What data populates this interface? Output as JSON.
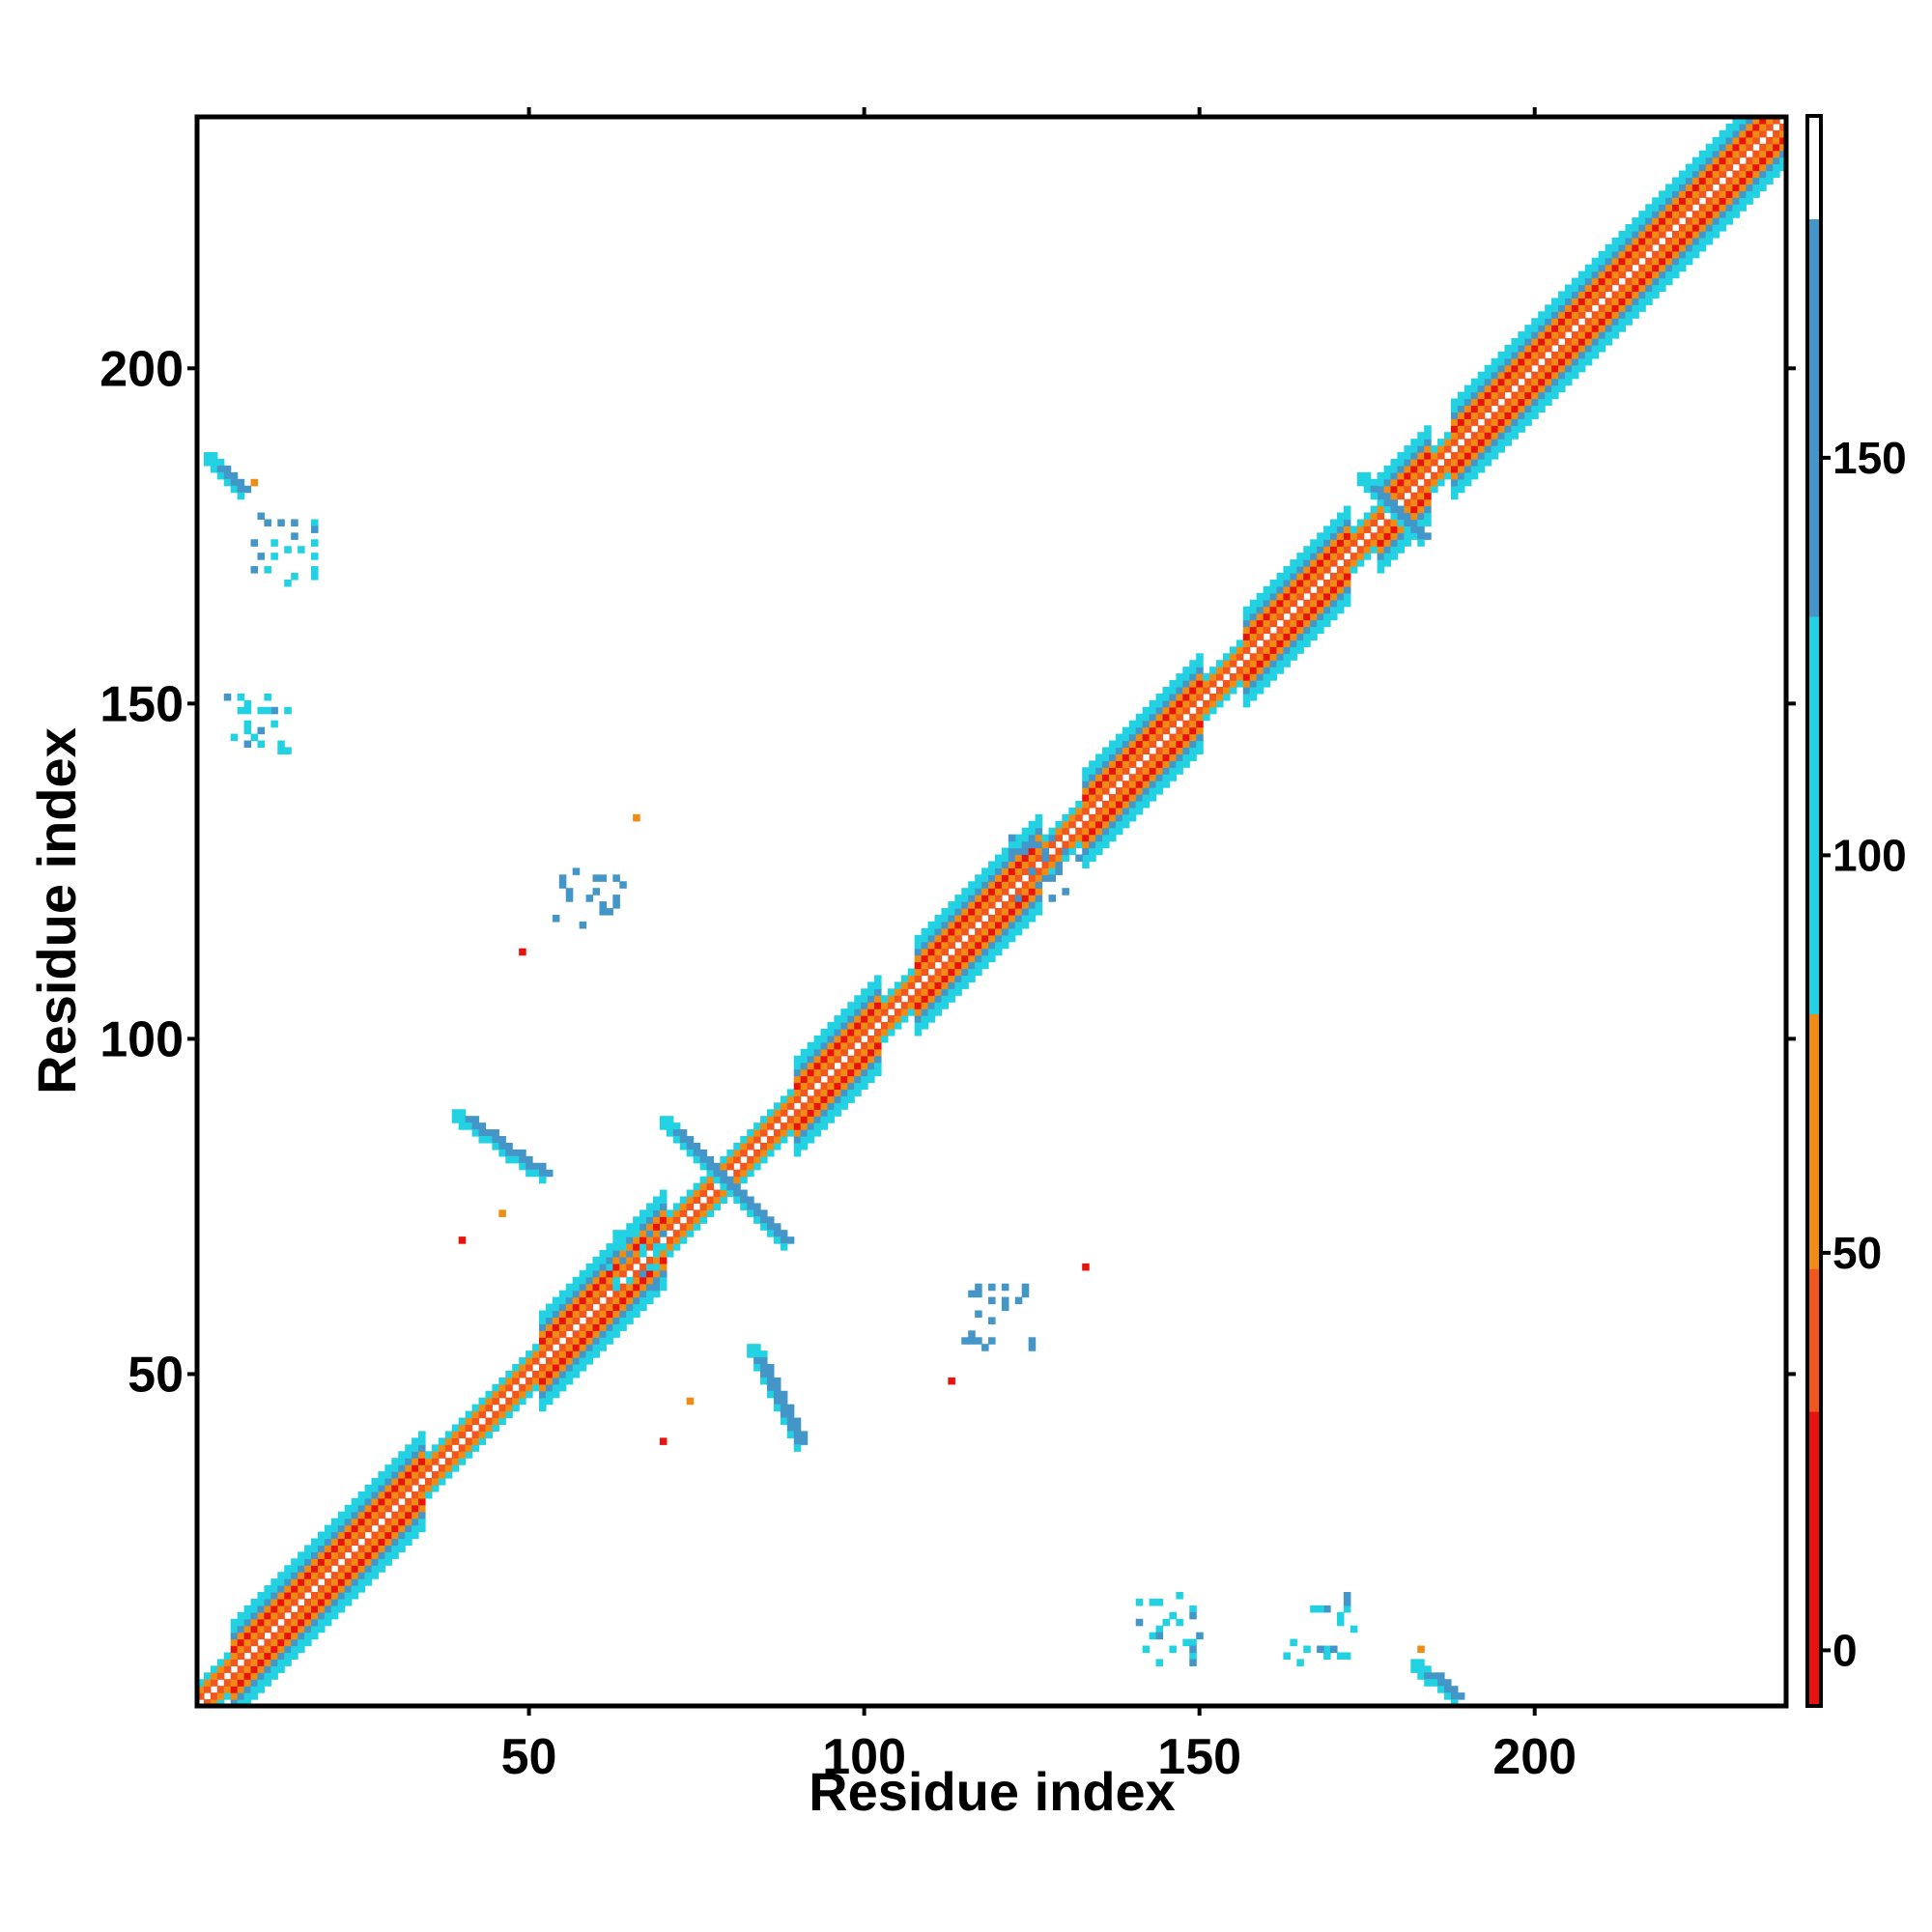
{
  "chart_data": {
    "type": "heatmap",
    "title": "",
    "xlabel": "Residue index",
    "ylabel": "Residue index",
    "xlim": [
      0.5,
      237.5
    ],
    "ylim": [
      0.5,
      237.5
    ],
    "x_ticks": [
      50,
      100,
      150,
      200
    ],
    "y_ticks": [
      50,
      100,
      150,
      200
    ],
    "grid": false,
    "colorbar": {
      "ticks": [
        0,
        50,
        100,
        150
      ],
      "range": [
        -7,
        193
      ],
      "bands": [
        {
          "from": -7,
          "to": 30,
          "color": "#e8130d"
        },
        {
          "from": 30,
          "to": 48,
          "color": "#f0561e"
        },
        {
          "from": 48,
          "to": 80,
          "color": "#f08c14"
        },
        {
          "from": 80,
          "to": 130,
          "color": "#22d2e2"
        },
        {
          "from": 130,
          "to": 180,
          "color": "#4596c8"
        },
        {
          "from": 180,
          "to": 193,
          "color": "#ffffff"
        }
      ]
    },
    "diagonal": {
      "start": 1,
      "end": 237
    },
    "helix_segments": [
      [
        6,
        34
      ],
      [
        52,
        70
      ],
      [
        90,
        102
      ],
      [
        108,
        126
      ],
      [
        133,
        150
      ],
      [
        157,
        172
      ],
      [
        177,
        184
      ],
      [
        188,
        216
      ],
      [
        216,
        237
      ]
    ],
    "sheet_contacts": [
      {
        "x0": 2,
        "y0": 187,
        "x1": 7,
        "y1": 182,
        "value": 150
      },
      {
        "x0": 39,
        "y0": 89,
        "x1": 52,
        "y1": 80,
        "value": 140
      },
      {
        "x0": 83,
        "y0": 54,
        "x1": 90,
        "y1": 40,
        "value": 130
      },
      {
        "x0": 70,
        "y0": 88,
        "x1": 88,
        "y1": 70,
        "value": 150
      },
      {
        "x0": 174,
        "y0": 184,
        "x1": 183,
        "y1": 175,
        "value": 150
      },
      {
        "x0": 182,
        "y0": 7,
        "x1": 188,
        "y1": 2,
        "value": 150
      }
    ],
    "contact_clusters": [
      {
        "x": 10,
        "y": 147,
        "value": 100
      },
      {
        "x": 14,
        "y": 173,
        "value": 100
      },
      {
        "x": 59,
        "y": 120,
        "value": 140
      },
      {
        "x": 120,
        "y": 59,
        "value": 140
      },
      {
        "x": 145,
        "y": 12,
        "value": 100
      },
      {
        "x": 168,
        "y": 12,
        "value": 100
      },
      {
        "x": 127,
        "y": 125,
        "value": 150
      },
      {
        "x": 66,
        "y": 68,
        "value": 100
      }
    ],
    "isolated_points": [
      {
        "x": 66,
        "y": 133,
        "value": 60
      },
      {
        "x": 49,
        "y": 113,
        "value": 10
      },
      {
        "x": 133,
        "y": 66,
        "value": 10
      },
      {
        "x": 113,
        "y": 49,
        "value": 10
      },
      {
        "x": 40,
        "y": 70,
        "value": 10
      },
      {
        "x": 70,
        "y": 40,
        "value": 10
      },
      {
        "x": 46,
        "y": 74,
        "value": 60
      },
      {
        "x": 74,
        "y": 46,
        "value": 60
      },
      {
        "x": 9,
        "y": 183,
        "value": 60
      },
      {
        "x": 183,
        "y": 9,
        "value": 60
      }
    ]
  }
}
